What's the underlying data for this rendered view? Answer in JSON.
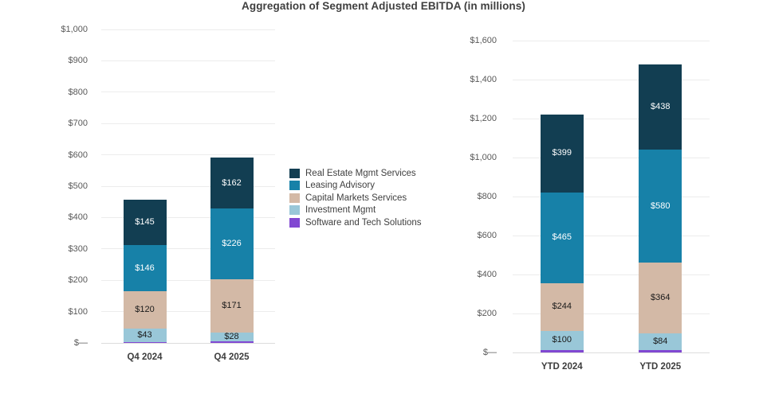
{
  "title": "Aggregation of Segment Adjusted EBITDA (in millions)",
  "colors": {
    "real_estate_mgmt_services": "#123e52",
    "leasing_advisory": "#1781a8",
    "capital_markets_services": "#d3b9a6",
    "investment_mgmt": "#99c7d8",
    "software_and_tech_solutions": "#8148d2",
    "gridline": "#ececec",
    "baseline": "#dcdcdc",
    "axis_text": "#595959",
    "category_text": "#3d3d3d",
    "title_text": "#3f3f3f"
  },
  "legend": {
    "position": "middle-between-charts",
    "items": [
      {
        "label": "Real Estate Mgmt Services",
        "color": "#123e52"
      },
      {
        "label": "Leasing Advisory",
        "color": "#1781a8"
      },
      {
        "label": "Capital Markets Services",
        "color": "#d3b9a6"
      },
      {
        "label": "Investment Mgmt",
        "color": "#99c7d8"
      },
      {
        "label": "Software and Tech Solutions",
        "color": "#8148d2"
      }
    ]
  },
  "chart_data": [
    {
      "type": "bar",
      "stacked": true,
      "title": "Aggregation of Segment Adjusted EBITDA (in millions)",
      "categories": [
        "Q4 2024",
        "Q4 2025"
      ],
      "xlabel": "",
      "ylabel": "",
      "ylim": [
        0,
        1000
      ],
      "ytick_step": 100,
      "ytick_labels": [
        "$—",
        "$100",
        "$200",
        "$300",
        "$400",
        "$500",
        "$600",
        "$700",
        "$800",
        "$900",
        "$1,000"
      ],
      "grid": true,
      "series": [
        {
          "name": "Real Estate Mgmt Services",
          "color": "#123e52",
          "text_color": "#ffffff",
          "values": [
            145,
            162
          ],
          "labels": [
            "$145",
            "$162"
          ]
        },
        {
          "name": "Leasing Advisory",
          "color": "#1781a8",
          "text_color": "#ffffff",
          "values": [
            146,
            226
          ],
          "labels": [
            "$146",
            "$226"
          ]
        },
        {
          "name": "Capital Markets Services",
          "color": "#d3b9a6",
          "text_color": "#1a1a1a",
          "values": [
            120,
            171
          ],
          "labels": [
            "$120",
            "$171"
          ]
        },
        {
          "name": "Investment Mgmt",
          "color": "#99c7d8",
          "text_color": "#1a1a1a",
          "values": [
            43,
            28
          ],
          "labels": [
            "$43",
            "$28"
          ]
        },
        {
          "name": "Software and Tech Solutions",
          "color": "#8148d2",
          "text_color": "#ffffff",
          "values": [
            2,
            4
          ],
          "labels": [
            "",
            ""
          ]
        }
      ]
    },
    {
      "type": "bar",
      "stacked": true,
      "title": "Aggregation of Segment Adjusted EBITDA (in millions)",
      "categories": [
        "YTD 2024",
        "YTD 2025"
      ],
      "xlabel": "",
      "ylabel": "",
      "ylim": [
        0,
        1600
      ],
      "ytick_step": 200,
      "ytick_labels": [
        "$—",
        "$200",
        "$400",
        "$600",
        "$800",
        "$1,000",
        "$1,200",
        "$1,400",
        "$1,600"
      ],
      "grid": true,
      "series": [
        {
          "name": "Real Estate Mgmt Services",
          "color": "#123e52",
          "text_color": "#ffffff",
          "values": [
            399,
            438
          ],
          "labels": [
            "$399",
            "$438"
          ]
        },
        {
          "name": "Leasing Advisory",
          "color": "#1781a8",
          "text_color": "#ffffff",
          "values": [
            465,
            580
          ],
          "labels": [
            "$465",
            "$580"
          ]
        },
        {
          "name": "Capital Markets Services",
          "color": "#d3b9a6",
          "text_color": "#1a1a1a",
          "values": [
            244,
            364
          ],
          "labels": [
            "$244",
            "$364"
          ]
        },
        {
          "name": "Investment Mgmt",
          "color": "#99c7d8",
          "text_color": "#1a1a1a",
          "values": [
            100,
            84
          ],
          "labels": [
            "$100",
            "$84"
          ]
        },
        {
          "name": "Software and Tech Solutions",
          "color": "#8148d2",
          "text_color": "#ffffff",
          "values": [
            12,
            12
          ],
          "labels": [
            "",
            ""
          ]
        }
      ]
    }
  ]
}
